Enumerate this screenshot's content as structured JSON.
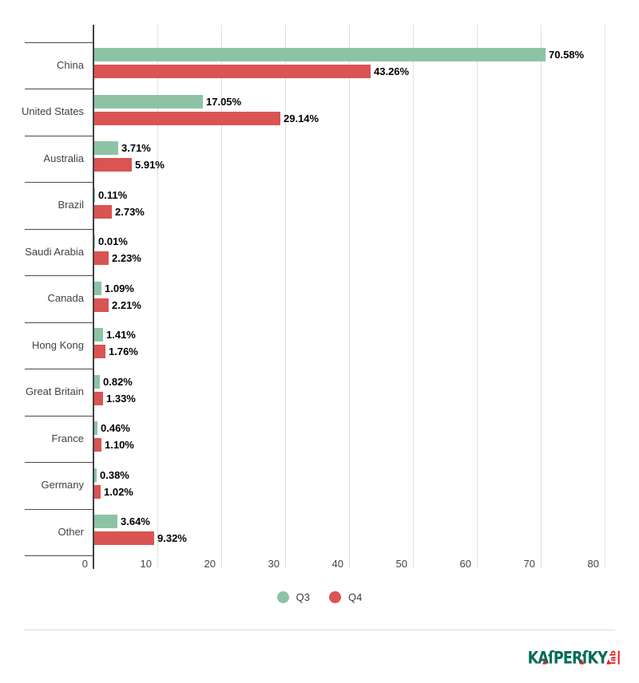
{
  "chart_data": {
    "type": "bar",
    "orientation": "horizontal",
    "title": "",
    "xlabel": "",
    "ylabel": "",
    "xlim": [
      0,
      80
    ],
    "x_ticks": [
      0,
      10,
      20,
      30,
      40,
      50,
      60,
      70,
      80
    ],
    "grid": true,
    "legend_position": "bottom",
    "value_label_format": "percent_two_decimals",
    "categories": [
      "China",
      "United States",
      "Australia",
      "Brazil",
      "Saudi Arabia",
      "Canada",
      "Hong Kong",
      "Great Britain",
      "France",
      "Germany",
      "Other"
    ],
    "series": [
      {
        "name": "Q3",
        "color": "#8DC3A4",
        "values": [
          70.58,
          17.05,
          3.71,
          0.11,
          0.01,
          1.09,
          1.41,
          0.82,
          0.46,
          0.38,
          3.64
        ],
        "labels": [
          "70.58%",
          "17.05%",
          "3.71%",
          "0.11%",
          "0.01%",
          "1.09%",
          "1.41%",
          "0.82%",
          "0.46%",
          "0.38%",
          "3.64%"
        ]
      },
      {
        "name": "Q4",
        "color": "#D95452",
        "values": [
          43.26,
          29.14,
          5.91,
          2.73,
          2.23,
          2.21,
          1.76,
          1.33,
          1.1,
          1.02,
          9.32
        ],
        "labels": [
          "43.26%",
          "29.14%",
          "5.91%",
          "2.73%",
          "2.23%",
          "2.21%",
          "1.76%",
          "1.33%",
          "1.10%",
          "1.02%",
          "9.32%"
        ]
      }
    ]
  },
  "footer": {
    "logo": {
      "text": "KASPERSKY",
      "display": "KAſPERſKY",
      "suffix": "lab",
      "green": "#006D55",
      "red": "#E31E24"
    }
  }
}
